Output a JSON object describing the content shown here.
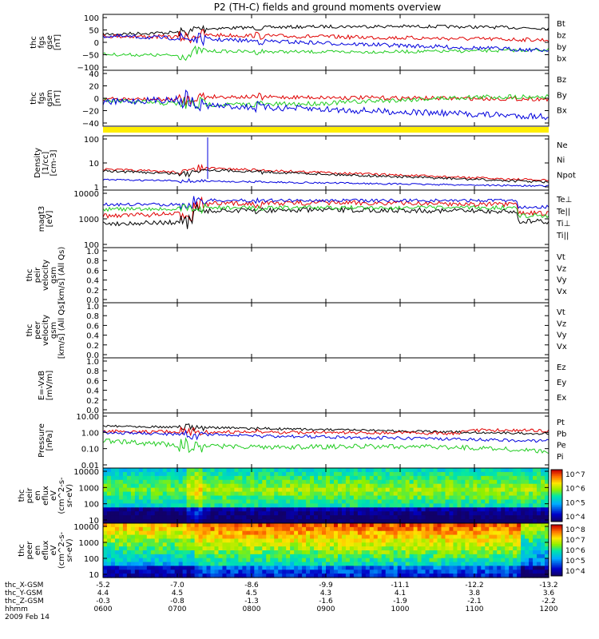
{
  "title": "P2 (TH-C) fields and ground moments overview",
  "colors": {
    "black": "#000000",
    "red": "#e00000",
    "green": "#22cc22",
    "blue": "#0000dd",
    "yellow": "#ffee00"
  },
  "time_ticks": [
    "0600",
    "0700",
    "0800",
    "0900",
    "1000",
    "1100",
    "1200"
  ],
  "footer": {
    "rows": [
      {
        "label": "thc_X-GSM",
        "values": [
          "-5.2",
          "-7.0",
          "-8.6",
          "-9.9",
          "-11.1",
          "-12.2",
          "-13.2"
        ]
      },
      {
        "label": "thc_Y-GSM",
        "values": [
          "4.4",
          "4.5",
          "4.5",
          "4.3",
          "4.1",
          "3.8",
          "3.6"
        ]
      },
      {
        "label": "thc_Z-GSM",
        "values": [
          "-0.3",
          "-0.8",
          "-1.3",
          "-1.6",
          "-1.9",
          "-2.1",
          "-2.2"
        ]
      },
      {
        "label": "hhmm",
        "values": [
          "0600",
          "0700",
          "0800",
          "0900",
          "1000",
          "1100",
          "1200"
        ]
      }
    ],
    "date": "2009 Feb 14"
  },
  "chart_data": [
    {
      "type": "line",
      "ylabel_lines": [
        "thc",
        "fgs",
        "gse",
        "[nT]"
      ],
      "yticks": [
        "100",
        "50",
        "0",
        "−50",
        "−100"
      ],
      "series": [
        {
          "name": "Bt"
        },
        {
          "name": "bz"
        },
        {
          "name": "by"
        },
        {
          "name": "bx"
        }
      ],
      "x": [
        "06:00",
        "12:00"
      ]
    },
    {
      "type": "line",
      "ylabel_lines": [
        "thc",
        "fgs",
        "gsm",
        "[nT]"
      ],
      "yticks": [
        "40",
        "20",
        "0",
        "−20",
        "−40"
      ],
      "series": [
        {
          "name": "Bz"
        },
        {
          "name": "By"
        },
        {
          "name": "Bx"
        }
      ]
    },
    {
      "type": "line",
      "ylabel_lines": [
        "Density",
        "[1/cc]",
        "[cm-3]"
      ],
      "yticks": [
        "100",
        "10",
        "1"
      ],
      "yscale": "log",
      "series": [
        {
          "name": "Ne"
        },
        {
          "name": "Ni"
        },
        {
          "name": "Npot"
        }
      ]
    },
    {
      "type": "line",
      "ylabel_lines": [
        "magt3",
        "[eV]"
      ],
      "yticks": [
        "10000",
        "1000",
        "100"
      ],
      "yscale": "log",
      "series": [
        {
          "name": "Te⊥"
        },
        {
          "name": "Te||"
        },
        {
          "name": "Ti⊥"
        },
        {
          "name": "Ti||"
        }
      ]
    },
    {
      "type": "line",
      "ylabel_lines": [
        "thc",
        "peir",
        "velocity",
        "gsm",
        "[km/s] (All Qs)"
      ],
      "yticks": [
        "1.0",
        "0.8",
        "0.6",
        "0.4",
        "0.2",
        "0.0"
      ],
      "series": [
        {
          "name": "Vt"
        },
        {
          "name": "Vz"
        },
        {
          "name": "Vy"
        },
        {
          "name": "Vx"
        }
      ]
    },
    {
      "type": "line",
      "ylabel_lines": [
        "thc",
        "peer",
        "velocity",
        "gsm",
        "[km/s] (All Qs)"
      ],
      "yticks": [
        "1.0",
        "0.8",
        "0.6",
        "0.4",
        "0.2",
        "0.0"
      ],
      "series": [
        {
          "name": "Vt"
        },
        {
          "name": "Vz"
        },
        {
          "name": "Vy"
        },
        {
          "name": "Vx"
        }
      ]
    },
    {
      "type": "line",
      "ylabel_lines": [
        "E=-VxB",
        "[mV/m]"
      ],
      "yticks": [
        "1.0",
        "0.8",
        "0.6",
        "0.4",
        "0.2",
        "0.0"
      ],
      "series": [
        {
          "name": "Ez"
        },
        {
          "name": "Ey"
        },
        {
          "name": "Ex"
        }
      ]
    },
    {
      "type": "line",
      "ylabel_lines": [
        "Pressure",
        "[nPa]"
      ],
      "yticks": [
        "10.00",
        "1.00",
        "0.10",
        "0.01"
      ],
      "yscale": "log",
      "series": [
        {
          "name": "Pt"
        },
        {
          "name": "Pb"
        },
        {
          "name": "Pe"
        },
        {
          "name": "Pi"
        }
      ]
    },
    {
      "type": "heatmap",
      "ylabel_lines": [
        "thc",
        "peir",
        "en",
        "eflux",
        "eV",
        "(cm^2-s-",
        "sr-eV)"
      ],
      "yticks": [
        "10000",
        "1000",
        "100",
        "10"
      ],
      "colorbar": [
        "10^7",
        "10^6",
        "10^5",
        "10^4"
      ]
    },
    {
      "type": "heatmap",
      "ylabel_lines": [
        "thc",
        "peer",
        "en",
        "eflux",
        "eV",
        "(cm^2-s-",
        "sr-eV)"
      ],
      "yticks": [
        "10000",
        "1000",
        "100",
        "10"
      ],
      "colorbar": [
        "10^8",
        "10^7",
        "10^6",
        "10^5",
        "10^4"
      ]
    }
  ]
}
